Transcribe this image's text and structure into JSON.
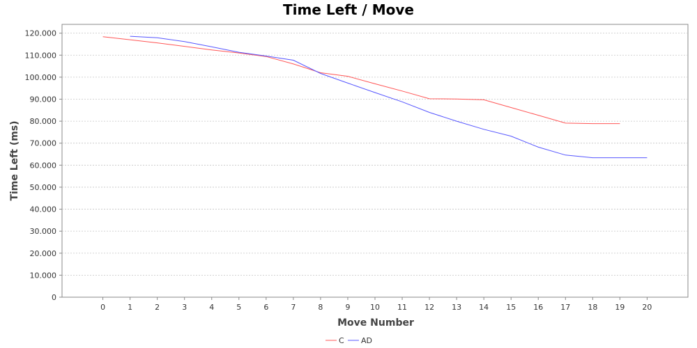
{
  "chart_data": {
    "type": "line",
    "title": "Time Left / Move",
    "xlabel": "Move Number",
    "ylabel": "Time Left (ms)",
    "x_ticks": [
      "0",
      "1",
      "2",
      "3",
      "4",
      "5",
      "6",
      "7",
      "8",
      "9",
      "10",
      "11",
      "12",
      "13",
      "14",
      "15",
      "16",
      "17",
      "18",
      "19",
      "20"
    ],
    "y_ticks": [
      "0",
      "10.000",
      "20.000",
      "30.000",
      "40.000",
      "50.000",
      "60.000",
      "70.000",
      "80.000",
      "90.000",
      "100.000",
      "110.000",
      "120.000"
    ],
    "xlim": [
      -1.5,
      21.5
    ],
    "ylim": [
      0,
      124000
    ],
    "grid": true,
    "legend_position": "bottom-center",
    "series": [
      {
        "name": "C",
        "color": "#ff5555",
        "x": [
          0,
          1,
          2,
          3,
          4,
          5,
          6,
          7,
          8,
          9,
          10,
          11,
          12,
          13,
          14,
          15,
          16,
          17,
          18,
          19
        ],
        "y": [
          118400,
          117000,
          115600,
          114000,
          112400,
          111000,
          109400,
          106000,
          102000,
          100400,
          97000,
          93700,
          90200,
          90100,
          89700,
          86200,
          82700,
          79100,
          78900,
          78900
        ]
      },
      {
        "name": "AD",
        "color": "#5555ff",
        "x": [
          1,
          2,
          3,
          4,
          5,
          6,
          7,
          8,
          9,
          10,
          11,
          12,
          13,
          14,
          15,
          16,
          17,
          18,
          19,
          20
        ],
        "y": [
          118600,
          117900,
          116200,
          113800,
          111300,
          109600,
          107700,
          101700,
          97300,
          93000,
          88800,
          84000,
          80000,
          76300,
          73200,
          68200,
          64600,
          63400,
          63400,
          63400
        ]
      }
    ]
  }
}
